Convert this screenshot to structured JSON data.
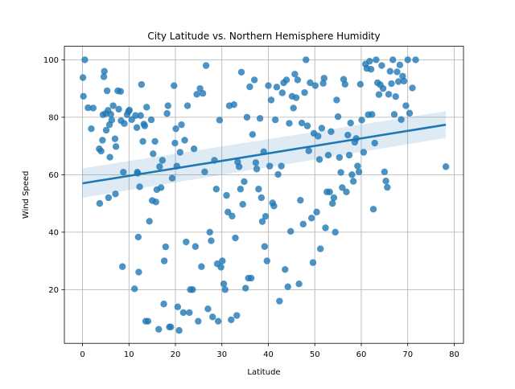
{
  "chart_data": {
    "type": "scatter",
    "title": "City Latitude vs. Northern Hemisphere Humidity",
    "xlabel": "Latitude",
    "ylabel": "Wind Speed",
    "xlim": [
      -3.9,
      82.0
    ],
    "ylim": [
      1.3,
      104.7
    ],
    "xticks": [
      0,
      10,
      20,
      30,
      40,
      50,
      60,
      70,
      80
    ],
    "yticks": [
      20,
      40,
      60,
      80,
      100
    ],
    "grid": true,
    "colors": {
      "points": "#1f77b4",
      "regression": "#1f77b4",
      "band": "#1f77b4"
    },
    "regression": {
      "x": [
        0,
        78.2
      ],
      "y": [
        57.0,
        77.4
      ],
      "ci_lower": [
        52.0,
        72.8
      ],
      "ci_upper": [
        62.2,
        82.1
      ]
    },
    "points": [
      [
        0.1,
        93.8
      ],
      [
        0.2,
        87.3
      ],
      [
        0.5,
        100
      ],
      [
        1.2,
        83.3
      ],
      [
        1.9,
        76
      ],
      [
        2.3,
        83.2
      ],
      [
        3.6,
        69
      ],
      [
        3.7,
        50
      ],
      [
        4.0,
        68.2
      ],
      [
        4.3,
        72
      ],
      [
        4.4,
        80.9
      ],
      [
        4.6,
        94.1
      ],
      [
        4.7,
        96
      ],
      [
        5.0,
        81.3
      ],
      [
        5.1,
        75.5
      ],
      [
        5.3,
        89.2
      ],
      [
        5.5,
        82.4
      ],
      [
        5.6,
        52
      ],
      [
        5.8,
        77.4
      ],
      [
        5.9,
        66.1
      ],
      [
        6.1,
        81
      ],
      [
        6.3,
        79
      ],
      [
        6.6,
        84
      ],
      [
        7.0,
        72.5
      ],
      [
        7.1,
        53.3
      ],
      [
        7.2,
        69.8
      ],
      [
        7.6,
        89.2
      ],
      [
        7.8,
        82.8
      ],
      [
        8.2,
        89
      ],
      [
        8.3,
        78.8
      ],
      [
        8.6,
        28
      ],
      [
        8.8,
        60.9
      ],
      [
        9.0,
        77.8
      ],
      [
        9.6,
        80.9
      ],
      [
        9.9,
        82
      ],
      [
        10.1,
        82.5
      ],
      [
        10.6,
        79.2
      ],
      [
        11.2,
        20.3
      ],
      [
        11.4,
        80.6
      ],
      [
        11.7,
        76.4
      ],
      [
        11.8,
        60.9
      ],
      [
        11.9,
        60.5
      ],
      [
        12.0,
        38.3
      ],
      [
        12.1,
        26.1
      ],
      [
        12.3,
        55.8
      ],
      [
        12.5,
        80.6
      ],
      [
        12.7,
        91.4
      ],
      [
        13.0,
        71.6
      ],
      [
        13.2,
        77.6
      ],
      [
        13.4,
        77
      ],
      [
        13.6,
        9
      ],
      [
        13.8,
        83.5
      ],
      [
        14.1,
        9
      ],
      [
        14.4,
        43.8
      ],
      [
        14.8,
        79.1
      ],
      [
        15.0,
        51
      ],
      [
        15.2,
        67.3
      ],
      [
        15.6,
        71.6
      ],
      [
        15.8,
        50.5
      ],
      [
        16.0,
        54.8
      ],
      [
        16.4,
        6.2
      ],
      [
        16.6,
        62.8
      ],
      [
        16.9,
        55.5
      ],
      [
        17.2,
        65
      ],
      [
        17.5,
        15
      ],
      [
        17.6,
        30
      ],
      [
        17.9,
        34.9
      ],
      [
        18.2,
        81.3
      ],
      [
        18.4,
        84
      ],
      [
        18.7,
        7
      ],
      [
        19.0,
        7
      ],
      [
        19.3,
        58.8
      ],
      [
        19.7,
        91
      ],
      [
        19.9,
        71
      ],
      [
        20.1,
        76
      ],
      [
        20.3,
        63
      ],
      [
        20.5,
        14
      ],
      [
        20.8,
        5.8
      ],
      [
        21.0,
        67.8
      ],
      [
        21.3,
        77.4
      ],
      [
        21.7,
        12
      ],
      [
        22.0,
        72
      ],
      [
        22.3,
        36.6
      ],
      [
        22.6,
        84
      ],
      [
        23.0,
        12
      ],
      [
        23.2,
        20
      ],
      [
        23.7,
        20
      ],
      [
        24.0,
        69
      ],
      [
        24.3,
        35
      ],
      [
        24.6,
        88
      ],
      [
        24.9,
        9
      ],
      [
        25.3,
        90
      ],
      [
        25.6,
        28
      ],
      [
        25.9,
        88.3
      ],
      [
        26.3,
        61
      ],
      [
        26.6,
        98
      ],
      [
        27.0,
        13.3
      ],
      [
        27.4,
        40
      ],
      [
        27.7,
        37
      ],
      [
        28.0,
        10.5
      ],
      [
        28.4,
        65
      ],
      [
        28.8,
        55
      ],
      [
        29.0,
        29
      ],
      [
        29.2,
        9
      ],
      [
        29.5,
        79
      ],
      [
        29.8,
        27.8
      ],
      [
        30.1,
        30
      ],
      [
        30.4,
        22
      ],
      [
        30.7,
        20
      ],
      [
        31.0,
        52.8
      ],
      [
        31.3,
        47
      ],
      [
        31.6,
        84
      ],
      [
        32.0,
        9.5
      ],
      [
        32.2,
        45.6
      ],
      [
        32.6,
        84.4
      ],
      [
        32.9,
        38
      ],
      [
        33.2,
        11
      ],
      [
        33.4,
        64.4
      ],
      [
        33.7,
        62.8
      ],
      [
        34.0,
        55
      ],
      [
        34.2,
        95.7
      ],
      [
        34.5,
        49.7
      ],
      [
        34.8,
        57.6
      ],
      [
        35.1,
        20.5
      ],
      [
        35.4,
        80
      ],
      [
        35.7,
        24
      ],
      [
        36.0,
        90.6
      ],
      [
        36.3,
        24
      ],
      [
        36.6,
        74
      ],
      [
        37.0,
        93
      ],
      [
        37.3,
        64.2
      ],
      [
        37.5,
        62
      ],
      [
        37.9,
        55
      ],
      [
        38.2,
        79.6
      ],
      [
        38.5,
        52
      ],
      [
        38.7,
        43.7
      ],
      [
        39.0,
        68
      ],
      [
        39.2,
        35
      ],
      [
        39.4,
        45.5
      ],
      [
        39.7,
        30
      ],
      [
        40.0,
        91
      ],
      [
        40.3,
        63
      ],
      [
        40.6,
        86
      ],
      [
        40.9,
        50.2
      ],
      [
        41.2,
        49.1
      ],
      [
        41.5,
        79.1
      ],
      [
        41.8,
        90.5
      ],
      [
        42.1,
        60.1
      ],
      [
        42.4,
        16
      ],
      [
        42.8,
        63
      ],
      [
        43.0,
        88.5
      ],
      [
        43.3,
        92
      ],
      [
        43.6,
        27
      ],
      [
        43.9,
        93
      ],
      [
        44.2,
        21
      ],
      [
        44.5,
        77.9
      ],
      [
        44.8,
        40.3
      ],
      [
        45.1,
        87.3
      ],
      [
        45.4,
        83.2
      ],
      [
        45.7,
        95
      ],
      [
        46.0,
        86.8
      ],
      [
        46.3,
        93
      ],
      [
        46.6,
        22
      ],
      [
        46.9,
        51.1
      ],
      [
        47.2,
        78
      ],
      [
        47.5,
        42.8
      ],
      [
        47.8,
        88.6
      ],
      [
        48.1,
        100
      ],
      [
        48.4,
        77
      ],
      [
        48.7,
        68.3
      ],
      [
        49.0,
        92
      ],
      [
        49.3,
        44.9
      ],
      [
        49.6,
        29.4
      ],
      [
        49.8,
        74.4
      ],
      [
        50.1,
        91
      ],
      [
        50.4,
        47
      ],
      [
        50.7,
        73.4
      ],
      [
        51.0,
        65.3
      ],
      [
        51.2,
        34.2
      ],
      [
        51.5,
        76.2
      ],
      [
        51.8,
        91.8
      ],
      [
        52.0,
        93.6
      ],
      [
        52.3,
        41.5
      ],
      [
        52.6,
        54
      ],
      [
        52.9,
        66.8
      ],
      [
        53.2,
        54
      ],
      [
        53.5,
        75
      ],
      [
        53.8,
        50
      ],
      [
        54.1,
        52
      ],
      [
        54.4,
        40
      ],
      [
        54.7,
        86
      ],
      [
        55.0,
        80.2
      ],
      [
        55.3,
        66
      ],
      [
        55.6,
        60.8
      ],
      [
        55.9,
        55.5
      ],
      [
        56.2,
        93.2
      ],
      [
        56.5,
        91.5
      ],
      [
        56.8,
        54
      ],
      [
        57.1,
        73.8
      ],
      [
        57.4,
        66.8
      ],
      [
        57.7,
        78
      ],
      [
        58.0,
        60
      ],
      [
        58.3,
        57.7
      ],
      [
        58.6,
        71.3
      ],
      [
        58.9,
        72.6
      ],
      [
        59.2,
        63
      ],
      [
        59.5,
        61
      ],
      [
        59.8,
        91.5
      ],
      [
        60.1,
        79
      ],
      [
        60.5,
        67.8
      ],
      [
        60.9,
        98.5
      ],
      [
        61.2,
        97
      ],
      [
        61.5,
        80.9
      ],
      [
        61.8,
        99.5
      ],
      [
        62.1,
        96.7
      ],
      [
        62.3,
        81
      ],
      [
        62.6,
        48
      ],
      [
        62.9,
        71
      ],
      [
        63.2,
        100
      ],
      [
        63.5,
        92
      ],
      [
        63.8,
        87.9
      ],
      [
        64.1,
        91.3
      ],
      [
        64.4,
        98
      ],
      [
        64.7,
        90
      ],
      [
        65.0,
        61
      ],
      [
        65.3,
        57.8
      ],
      [
        65.6,
        55.6
      ],
      [
        65.9,
        88
      ],
      [
        66.2,
        96
      ],
      [
        66.5,
        91.7
      ],
      [
        66.8,
        100
      ],
      [
        67.1,
        81
      ],
      [
        67.4,
        87.2
      ],
      [
        67.7,
        95.8
      ],
      [
        68.0,
        92.4
      ],
      [
        68.3,
        98.2
      ],
      [
        68.6,
        79.2
      ],
      [
        68.9,
        94.3
      ],
      [
        69.2,
        92.6
      ],
      [
        69.6,
        84
      ],
      [
        70.0,
        100
      ],
      [
        70.4,
        81.4
      ],
      [
        71.0,
        90.2
      ],
      [
        71.7,
        100
      ],
      [
        78.2,
        62.8
      ]
    ]
  }
}
